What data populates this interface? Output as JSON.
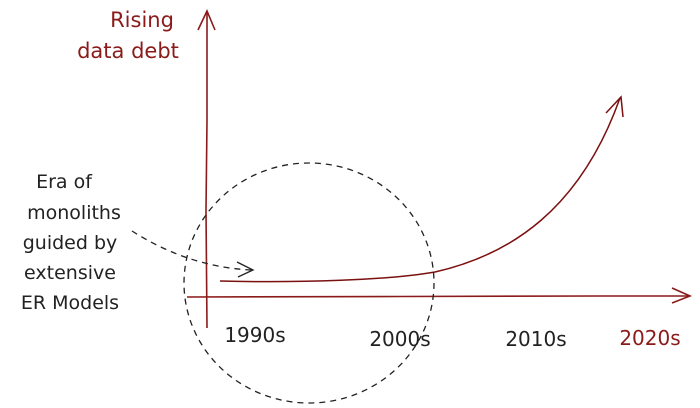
{
  "y_axis_label": [
    "Rising",
    "data debt"
  ],
  "x_ticks": [
    "1990s",
    "2000s",
    "2010s",
    "2020s"
  ],
  "annotation_lines": [
    "Era of",
    "monoliths",
    "guided by",
    "extensive",
    "ER Models"
  ],
  "colors": {
    "axis": "#8b1a1a",
    "curve": "#7a1010",
    "ink": "#222222",
    "dark_red_text": "#8b1a1a"
  }
}
